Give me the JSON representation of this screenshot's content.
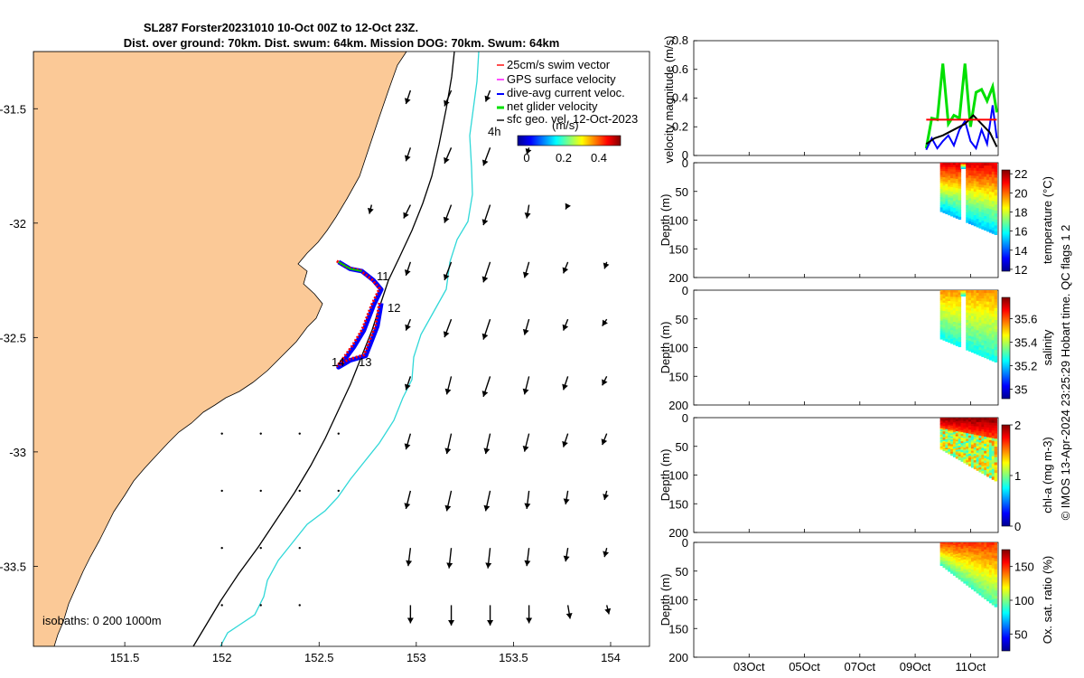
{
  "title_line1": "SL287 Forster20231010 10-Oct 00Z to 12-Oct 23Z.",
  "title_line2": "Dist. over ground: 70km. Dist. swum: 64km. Mission DOG: 70km. Swum: 64km",
  "colors": {
    "land": "#fbc997",
    "swim_vector": "#ff0000",
    "gps_velocity": "#ff00ff",
    "dive_avg_current": "#0000ff",
    "net_glider_velocity": "#00e000",
    "sfc_geo_vel": "#000000",
    "isobath_200": "#30d8d8",
    "isobath_1000": "#000000"
  },
  "footer": "© IMOS 13-Apr-2024 23:25:29 Hobart time. QC flags 1  2",
  "chart_data": [
    {
      "type": "map",
      "name": "track-map",
      "legend": {
        "items": [
          "25cm/s swim vector",
          "GPS surface velocity",
          "dive-avg current veloc.",
          "net glider velocity",
          "sfc geo. vel. 12-Oct-2023"
        ],
        "time_step_label": "4h",
        "colorbar_label": "(m/s)",
        "colorbar_ticks": [
          "0",
          "0.2",
          "0.4"
        ],
        "placement": "top-right"
      },
      "xticks": [
        "151.5",
        "152",
        "152.5",
        "153",
        "153.5",
        "154"
      ],
      "yticks": [
        "-31.5",
        "-32",
        "-32.5",
        "-33",
        "-33.5"
      ],
      "xlim": [
        151.03,
        154.2
      ],
      "ylim": [
        -33.85,
        -31.25
      ],
      "isobaths_label": "isobaths: 0    200   1000m",
      "track_labels": [
        "11",
        "12",
        "13",
        "14"
      ],
      "track_points": [
        [
          152.6,
          -32.17
        ],
        [
          152.66,
          -32.2
        ],
        [
          152.72,
          -32.21
        ],
        [
          152.78,
          -32.25
        ],
        [
          152.82,
          -32.29
        ],
        [
          152.78,
          -32.36
        ],
        [
          152.73,
          -32.47
        ],
        [
          152.68,
          -32.54
        ],
        [
          152.62,
          -32.61
        ],
        [
          152.6,
          -32.63
        ],
        [
          152.66,
          -32.6
        ],
        [
          152.74,
          -32.58
        ],
        [
          152.8,
          -32.45
        ],
        [
          152.82,
          -32.35
        ]
      ],
      "current_arrows": [
        {
          "lon": 152.97,
          "lat": -31.42,
          "dx": -0.02,
          "dy": -0.06
        },
        {
          "lon": 153.18,
          "lat": -31.42,
          "dx": -0.03,
          "dy": -0.07
        },
        {
          "lon": 153.38,
          "lat": -31.42,
          "dx": -0.02,
          "dy": -0.05
        },
        {
          "lon": 152.97,
          "lat": -31.67,
          "dx": -0.02,
          "dy": -0.06
        },
        {
          "lon": 153.18,
          "lat": -31.67,
          "dx": -0.03,
          "dy": -0.07
        },
        {
          "lon": 153.38,
          "lat": -31.67,
          "dx": -0.03,
          "dy": -0.08
        },
        {
          "lon": 153.58,
          "lat": -31.67,
          "dx": -0.01,
          "dy": -0.03
        },
        {
          "lon": 152.77,
          "lat": -31.92,
          "dx": -0.01,
          "dy": -0.04
        },
        {
          "lon": 152.97,
          "lat": -31.92,
          "dx": -0.03,
          "dy": -0.06
        },
        {
          "lon": 153.18,
          "lat": -31.92,
          "dx": -0.03,
          "dy": -0.08
        },
        {
          "lon": 153.38,
          "lat": -31.92,
          "dx": -0.03,
          "dy": -0.09
        },
        {
          "lon": 153.58,
          "lat": -31.92,
          "dx": -0.01,
          "dy": -0.06
        },
        {
          "lon": 153.78,
          "lat": -31.92,
          "dx": -0.01,
          "dy": -0.02
        },
        {
          "lon": 152.97,
          "lat": -32.17,
          "dx": -0.02,
          "dy": -0.06
        },
        {
          "lon": 153.18,
          "lat": -32.17,
          "dx": -0.03,
          "dy": -0.08
        },
        {
          "lon": 153.38,
          "lat": -32.17,
          "dx": -0.03,
          "dy": -0.09
        },
        {
          "lon": 153.58,
          "lat": -32.17,
          "dx": -0.02,
          "dy": -0.07
        },
        {
          "lon": 153.78,
          "lat": -32.17,
          "dx": -0.02,
          "dy": -0.05
        },
        {
          "lon": 153.98,
          "lat": -32.17,
          "dx": -0.01,
          "dy": -0.03
        },
        {
          "lon": 152.97,
          "lat": -32.42,
          "dx": -0.02,
          "dy": -0.05
        },
        {
          "lon": 153.18,
          "lat": -32.42,
          "dx": -0.03,
          "dy": -0.08
        },
        {
          "lon": 153.38,
          "lat": -32.42,
          "dx": -0.03,
          "dy": -0.09
        },
        {
          "lon": 153.58,
          "lat": -32.42,
          "dx": -0.02,
          "dy": -0.07
        },
        {
          "lon": 153.78,
          "lat": -32.42,
          "dx": -0.02,
          "dy": -0.05
        },
        {
          "lon": 153.98,
          "lat": -32.42,
          "dx": -0.02,
          "dy": -0.03
        },
        {
          "lon": 152.97,
          "lat": -32.67,
          "dx": -0.02,
          "dy": -0.06
        },
        {
          "lon": 153.18,
          "lat": -32.67,
          "dx": -0.02,
          "dy": -0.08
        },
        {
          "lon": 153.38,
          "lat": -32.67,
          "dx": -0.03,
          "dy": -0.09
        },
        {
          "lon": 153.58,
          "lat": -32.67,
          "dx": -0.02,
          "dy": -0.08
        },
        {
          "lon": 153.78,
          "lat": -32.67,
          "dx": -0.02,
          "dy": -0.06
        },
        {
          "lon": 153.98,
          "lat": -32.67,
          "dx": -0.02,
          "dy": -0.04
        },
        {
          "lon": 152.97,
          "lat": -32.92,
          "dx": -0.02,
          "dy": -0.07
        },
        {
          "lon": 153.18,
          "lat": -32.92,
          "dx": -0.02,
          "dy": -0.09
        },
        {
          "lon": 153.38,
          "lat": -32.92,
          "dx": -0.02,
          "dy": -0.09
        },
        {
          "lon": 153.58,
          "lat": -32.92,
          "dx": -0.02,
          "dy": -0.08
        },
        {
          "lon": 153.78,
          "lat": -32.92,
          "dx": -0.02,
          "dy": -0.06
        },
        {
          "lon": 153.98,
          "lat": -32.92,
          "dx": -0.02,
          "dy": -0.05
        },
        {
          "lon": 152.97,
          "lat": -33.17,
          "dx": -0.02,
          "dy": -0.08
        },
        {
          "lon": 153.18,
          "lat": -33.17,
          "dx": -0.02,
          "dy": -0.09
        },
        {
          "lon": 153.38,
          "lat": -33.17,
          "dx": -0.02,
          "dy": -0.09
        },
        {
          "lon": 153.58,
          "lat": -33.17,
          "dx": -0.01,
          "dy": -0.08
        },
        {
          "lon": 153.78,
          "lat": -33.17,
          "dx": -0.01,
          "dy": -0.06
        },
        {
          "lon": 153.98,
          "lat": -33.17,
          "dx": -0.01,
          "dy": -0.04
        },
        {
          "lon": 152.97,
          "lat": -33.42,
          "dx": -0.01,
          "dy": -0.08
        },
        {
          "lon": 153.18,
          "lat": -33.42,
          "dx": -0.01,
          "dy": -0.09
        },
        {
          "lon": 153.38,
          "lat": -33.42,
          "dx": -0.01,
          "dy": -0.09
        },
        {
          "lon": 153.58,
          "lat": -33.42,
          "dx": -0.01,
          "dy": -0.08
        },
        {
          "lon": 153.78,
          "lat": -33.42,
          "dx": -0.01,
          "dy": -0.06
        },
        {
          "lon": 153.98,
          "lat": -33.42,
          "dx": -0.01,
          "dy": -0.04
        },
        {
          "lon": 152.97,
          "lat": -33.67,
          "dx": 0.0,
          "dy": -0.08
        },
        {
          "lon": 153.18,
          "lat": -33.67,
          "dx": 0.0,
          "dy": -0.09
        },
        {
          "lon": 153.38,
          "lat": -33.67,
          "dx": 0.0,
          "dy": -0.09
        },
        {
          "lon": 153.58,
          "lat": -33.67,
          "dx": 0.0,
          "dy": -0.08
        },
        {
          "lon": 153.78,
          "lat": -33.67,
          "dx": 0.01,
          "dy": -0.06
        },
        {
          "lon": 153.98,
          "lat": -33.67,
          "dx": 0.01,
          "dy": -0.04
        }
      ]
    },
    {
      "type": "line",
      "name": "velocity-panel",
      "ylabel": "velocity magnitude (m/s)",
      "ylim": [
        0,
        0.8
      ],
      "yticks": [
        "0",
        "0.2",
        "0.4",
        "0.6",
        "0.8"
      ],
      "xlim": [
        1.0,
        12.0
      ],
      "series": [
        {
          "color": "#00e000",
          "x": [
            9.4,
            9.6,
            9.8,
            10.0,
            10.2,
            10.4,
            10.6,
            10.8,
            11.0,
            11.2,
            11.4,
            11.6,
            11.8,
            11.95
          ],
          "values": [
            0.05,
            0.26,
            0.25,
            0.64,
            0.22,
            0.28,
            0.26,
            0.64,
            0.2,
            0.44,
            0.46,
            0.38,
            0.48,
            0.3
          ]
        },
        {
          "color": "#0000ff",
          "x": [
            9.4,
            9.6,
            9.8,
            10.0,
            10.2,
            10.4,
            10.6,
            10.8,
            11.0,
            11.2,
            11.4,
            11.6,
            11.8,
            11.95
          ],
          "values": [
            0.04,
            0.12,
            0.05,
            0.1,
            0.14,
            0.07,
            0.18,
            0.24,
            0.1,
            0.05,
            0.18,
            0.08,
            0.35,
            0.12
          ]
        },
        {
          "color": "#000000",
          "x": [
            9.4,
            9.7,
            10.0,
            10.4,
            10.8,
            11.1,
            11.4,
            11.7,
            11.95
          ],
          "values": [
            0.08,
            0.12,
            0.14,
            0.18,
            0.22,
            0.28,
            0.22,
            0.16,
            0.06
          ]
        },
        {
          "color": "#ff0000",
          "x": [
            9.4,
            9.7,
            10.0,
            10.4,
            10.8,
            11.1,
            11.4,
            11.7,
            11.95
          ],
          "values": [
            0.25,
            0.25,
            0.25,
            0.25,
            0.25,
            0.25,
            0.25,
            0.25,
            0.25
          ]
        }
      ]
    },
    {
      "type": "heatmap",
      "name": "temperature-panel",
      "ylabel": "Depth (m)",
      "colorbar_label": "temperature (°C)",
      "colorbar_ticks": [
        "12",
        "14",
        "16",
        "18",
        "20",
        "22"
      ],
      "clim": [
        11.8,
        22.4
      ],
      "ylim": [
        0,
        200
      ],
      "yticks": [
        "0",
        "50",
        "100",
        "150",
        "200"
      ],
      "value_top": 21.5,
      "value_bottom": 15.0
    },
    {
      "type": "heatmap",
      "name": "salinity-panel",
      "ylabel": "Depth (m)",
      "colorbar_label": "salinity",
      "colorbar_ticks": [
        "35",
        "35.2",
        "35.4",
        "35.6"
      ],
      "clim": [
        34.92,
        35.78
      ],
      "ylim": [
        0,
        200
      ],
      "yticks": [
        "0",
        "50",
        "100",
        "150",
        "200"
      ],
      "value_top": 35.55,
      "value_bottom": 35.25
    },
    {
      "type": "heatmap",
      "name": "chla-panel",
      "ylabel": "Depth (m)",
      "colorbar_label": "chl-a (mg m-3)",
      "colorbar_ticks": [
        "0",
        "1",
        "2"
      ],
      "clim": [
        0,
        2
      ],
      "ylim": [
        0,
        200
      ],
      "yticks": [
        "0",
        "50",
        "100",
        "150",
        "200"
      ],
      "value_top": 2.0,
      "value_bottom": 0.8
    },
    {
      "type": "heatmap",
      "name": "oxygen-panel",
      "ylabel": "Depth (m)",
      "colorbar_label": "Ox. sat. ratio (%)",
      "colorbar_ticks": [
        "50",
        "100",
        "150"
      ],
      "clim": [
        25,
        175
      ],
      "ylim": [
        0,
        200
      ],
      "yticks": [
        "0",
        "50",
        "100",
        "150",
        "200"
      ],
      "value_top": 150,
      "value_bottom": 90
    }
  ],
  "time_axis": {
    "xlim": [
      1.0,
      12.0
    ],
    "tick_positions": [
      3,
      5,
      7,
      9,
      11
    ],
    "tick_labels": [
      "03Oct",
      "05Oct",
      "07Oct",
      "09Oct",
      "11Oct"
    ]
  }
}
